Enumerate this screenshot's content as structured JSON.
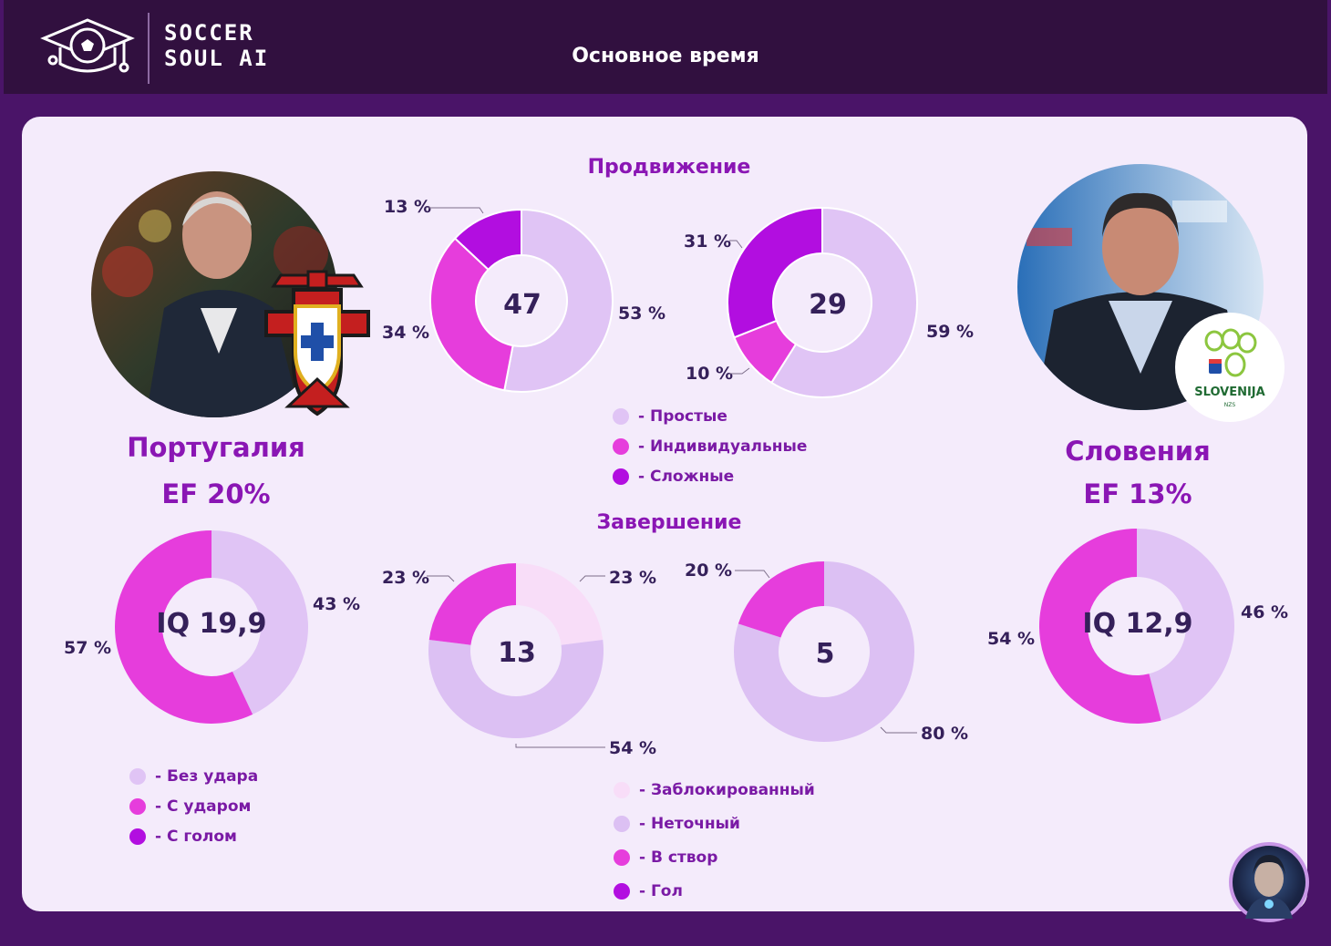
{
  "header": {
    "brand_line1": "SOCCER",
    "brand_line2": "SOUL AI",
    "title": "Основное время"
  },
  "colors": {
    "simple": "#e0c4f5",
    "individual": "#e63ddc",
    "complex": "#b20ee0",
    "blocked": "#f8ddf8",
    "inaccurate": "#dcc0f3",
    "on_target": "#e63ddc",
    "goal": "#b20ee0"
  },
  "sections": {
    "progression": "Продвижение",
    "finishing": "Завершение"
  },
  "teams": {
    "left": {
      "name": "Португалия",
      "ef": "EF  20%",
      "photo": "coach-portugal-photo",
      "badge": "portugal-fpf-crest"
    },
    "right": {
      "name": "Словения",
      "ef": "EF  13%",
      "photo": "coach-slovenia-photo",
      "badge": "slovenia-nzs-logo",
      "badge_text": "SLOVENIJA",
      "badge_subtext": "NZS"
    }
  },
  "legend_progression": [
    {
      "label": "- Простые",
      "color": "#e0c4f5"
    },
    {
      "label": "- Индивидуальные",
      "color": "#e63ddc"
    },
    {
      "label": "- Сложные",
      "color": "#b20ee0"
    }
  ],
  "legend_shots": [
    {
      "label": "- Без удара",
      "color": "#e0c4f5"
    },
    {
      "label": "- С ударом",
      "color": "#e63ddc"
    },
    {
      "label": "- С голом",
      "color": "#b20ee0"
    }
  ],
  "legend_finishing": [
    {
      "label": "- Заблокированный",
      "color": "#f8ddf8"
    },
    {
      "label": "- Неточный",
      "color": "#dcc0f3"
    },
    {
      "label": "- В створ",
      "color": "#e63ddc"
    },
    {
      "label": "- Гол",
      "color": "#b20ee0"
    }
  ],
  "chart_data": [
    {
      "type": "pie",
      "id": "progression-portugal",
      "center_value": "47",
      "slices": [
        {
          "name": "- Простые",
          "value": 53,
          "label": "53 %"
        },
        {
          "name": "- Индивидуальные",
          "value": 34,
          "label": "34 %"
        },
        {
          "name": "- Сложные",
          "value": 13,
          "label": "13 %"
        }
      ]
    },
    {
      "type": "pie",
      "id": "progression-slovenia",
      "center_value": "29",
      "slices": [
        {
          "name": "- Простые",
          "value": 59,
          "label": "59 %"
        },
        {
          "name": "- Индивидуальные",
          "value": 10,
          "label": "10 %"
        },
        {
          "name": "- Сложные",
          "value": 31,
          "label": "31 %"
        }
      ]
    },
    {
      "type": "pie",
      "id": "shots-portugal",
      "center_value": "IQ 19,9",
      "slices": [
        {
          "name": "- Без удара",
          "value": 43,
          "label": "43 %"
        },
        {
          "name": "- С ударом",
          "value": 57,
          "label": "57 %"
        }
      ]
    },
    {
      "type": "pie",
      "id": "finishing-portugal",
      "center_value": "13",
      "slices": [
        {
          "name": "- Заблокированный",
          "value": 23,
          "label": "23 %"
        },
        {
          "name": "- Неточный",
          "value": 54,
          "label": "54 %"
        },
        {
          "name": "- В створ",
          "value": 23,
          "label": "23 %"
        }
      ]
    },
    {
      "type": "pie",
      "id": "finishing-slovenia",
      "center_value": "5",
      "slices": [
        {
          "name": "- Неточный",
          "value": 80,
          "label": "80 %"
        },
        {
          "name": "- В створ",
          "value": 20,
          "label": "20 %"
        }
      ]
    },
    {
      "type": "pie",
      "id": "shots-slovenia",
      "center_value": "IQ 12,9",
      "slices": [
        {
          "name": "- Без удара",
          "value": 46,
          "label": "46 %"
        },
        {
          "name": "- С ударом",
          "value": 54,
          "label": "54 %"
        }
      ]
    }
  ]
}
